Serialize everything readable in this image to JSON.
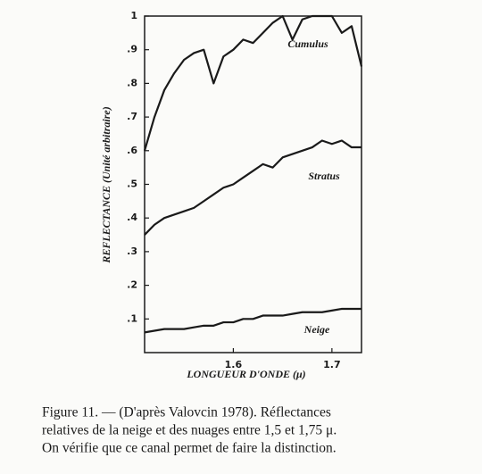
{
  "chart_data": {
    "type": "line",
    "y_label": "REFLECTANCE (Unité arbitraire)",
    "x_label": "LONGUEUR D'ONDE (μ)",
    "x": [
      1.51,
      1.52,
      1.53,
      1.54,
      1.55,
      1.56,
      1.57,
      1.58,
      1.59,
      1.6,
      1.61,
      1.62,
      1.63,
      1.64,
      1.65,
      1.66,
      1.67,
      1.68,
      1.69,
      1.7,
      1.71,
      1.72,
      1.73
    ],
    "series": [
      {
        "name": "Cumulus",
        "color": "#1a1a1a",
        "values": [
          0.6,
          0.7,
          0.78,
          0.83,
          0.87,
          0.89,
          0.9,
          0.8,
          0.88,
          0.9,
          0.93,
          0.92,
          0.95,
          0.98,
          1.0,
          0.93,
          0.99,
          1.0,
          1.0,
          1.0,
          0.95,
          0.97,
          0.85
        ]
      },
      {
        "name": "Stratus",
        "color": "#1a1a1a",
        "values": [
          0.35,
          0.38,
          0.4,
          0.41,
          0.42,
          0.43,
          0.45,
          0.47,
          0.49,
          0.5,
          0.52,
          0.54,
          0.56,
          0.55,
          0.58,
          0.59,
          0.6,
          0.61,
          0.63,
          0.62,
          0.63,
          0.61,
          0.61
        ]
      },
      {
        "name": "Neige",
        "color": "#1a1a1a",
        "values": [
          0.06,
          0.065,
          0.07,
          0.07,
          0.07,
          0.075,
          0.08,
          0.08,
          0.09,
          0.09,
          0.1,
          0.1,
          0.11,
          0.11,
          0.11,
          0.115,
          0.12,
          0.12,
          0.12,
          0.125,
          0.13,
          0.13,
          0.13
        ]
      }
    ],
    "xlim": [
      1.51,
      1.73
    ],
    "xticks": [
      1.6,
      1.7
    ],
    "ylim": [
      0,
      1
    ],
    "yticks": [
      {
        "value": 0.1,
        "label": ".1"
      },
      {
        "value": 0.2,
        "label": ".2"
      },
      {
        "value": 0.3,
        "label": ".3"
      },
      {
        "value": 0.4,
        "label": ".4"
      },
      {
        "value": 0.5,
        "label": ".5"
      },
      {
        "value": 0.6,
        "label": ".6"
      },
      {
        "value": 0.7,
        "label": ".7"
      },
      {
        "value": 0.8,
        "label": ".8"
      },
      {
        "value": 0.9,
        "label": ".9"
      },
      1
    ],
    "caption": [
      "Figure 11. — (D'après Valovcin 1978). Réflectances",
      "relatives de la neige et des nuages entre 1,5 et 1,75 μ.",
      "On vérifie que ce canal permet de faire la distinction."
    ]
  }
}
